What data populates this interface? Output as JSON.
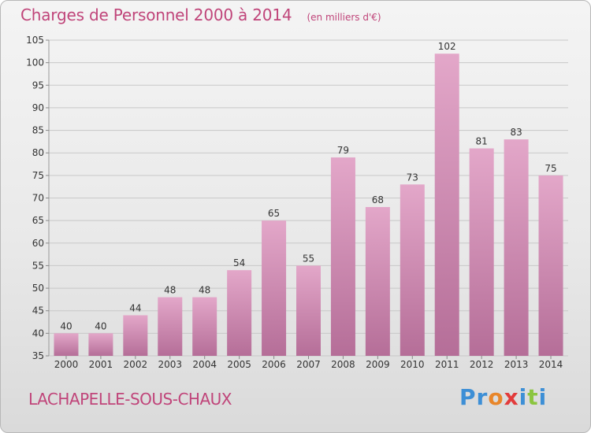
{
  "header": {
    "title": "Charges de Personnel 2000 à 2014",
    "subtitle": "(en milliers d'€)"
  },
  "footer": {
    "commune": "LACHAPELLE-SOUS-CHAUX",
    "brand": "Proxiti"
  },
  "colors": {
    "accent": "#c0457a",
    "bar_top": "#e3a7c9",
    "bar_bottom": "#b56e98",
    "grid": "#c8c8c8",
    "axis_text": "#333333"
  },
  "chart_data": {
    "type": "bar",
    "title": "Charges de Personnel 2000 à 2014",
    "subtitle": "(en milliers d'€)",
    "categories": [
      "2000",
      "2001",
      "2002",
      "2003",
      "2004",
      "2005",
      "2006",
      "2007",
      "2008",
      "2009",
      "2010",
      "2011",
      "2012",
      "2013",
      "2014"
    ],
    "values": [
      40,
      40,
      44,
      48,
      48,
      54,
      65,
      55,
      79,
      68,
      73,
      102,
      81,
      83,
      75
    ],
    "ylim": [
      35,
      105
    ],
    "yticks": [
      35,
      40,
      45,
      50,
      55,
      60,
      65,
      70,
      75,
      80,
      85,
      90,
      95,
      100,
      105
    ],
    "grid": true,
    "xlabel": "",
    "ylabel": ""
  }
}
